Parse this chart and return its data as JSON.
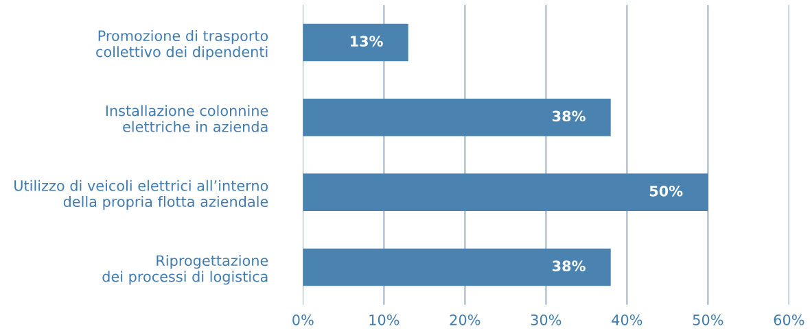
{
  "chart_data": {
    "type": "bar",
    "orientation": "horizontal",
    "categories": [
      "Promozione di trasporto\ncollettivo dei dipendenti",
      "Installazione colonnine\nelettriche in azienda",
      "Utilizzo di veicoli elettrici all’interno\ndella propria flotta aziendale",
      "Riprogettazione\ndei processi di logistica"
    ],
    "values": [
      13,
      38,
      50,
      38
    ],
    "value_labels": [
      "13%",
      "38%",
      "50%",
      "38%"
    ],
    "color": "#4a82b0",
    "xlim": [
      0,
      60
    ],
    "xticks": [
      {
        "value": 0,
        "label": "0%"
      },
      {
        "value": 10,
        "label": "10%"
      },
      {
        "value": 20,
        "label": "20%"
      },
      {
        "value": 30,
        "label": "30%"
      },
      {
        "value": 40,
        "label": "40%"
      },
      {
        "value": 50,
        "label": "50%"
      },
      {
        "value": 60,
        "label": "60%"
      }
    ],
    "grid": "x",
    "legend": false
  }
}
